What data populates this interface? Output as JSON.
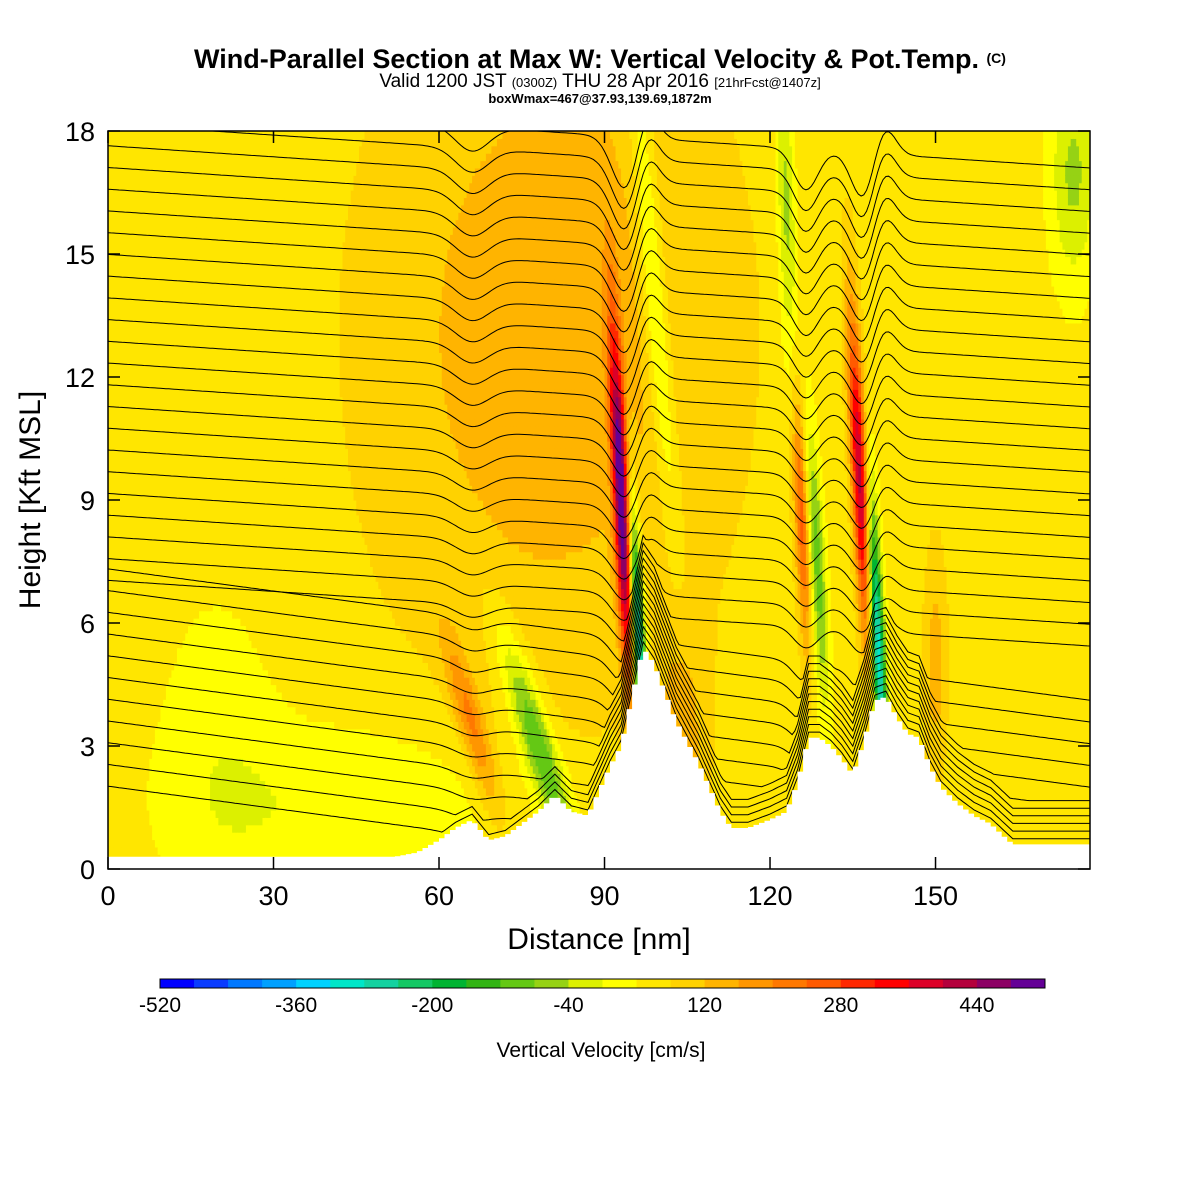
{
  "header": {
    "title_main": "Wind-Parallel Section at Max W: Vertical Velocity & Pot.Temp.",
    "title_mark": "(C)",
    "valid_prefix": "Valid 1200 JST",
    "valid_utc": "(0300Z)",
    "valid_date": "THU 28 Apr 2016",
    "forecast_info": "[21hrFcst@1407z]",
    "box_info": "boxWmax=467@37.93,139.69,1872m"
  },
  "chart_data": {
    "type": "heatmap",
    "title": "Wind-Parallel Section at Max W: Vertical Velocity & Pot.Temp.",
    "xlabel": "Distance [nm]",
    "ylabel": "Height [Kft MSL]",
    "xlim": [
      0,
      178
    ],
    "ylim": [
      0,
      18
    ],
    "x_ticks": [
      0,
      30,
      60,
      90,
      120,
      150
    ],
    "y_ticks": [
      0,
      3,
      6,
      9,
      12,
      15,
      18
    ],
    "colorbar": {
      "label": "Vertical Velocity [cm/s]",
      "min": -520,
      "max": 520,
      "step": 40,
      "tick_values": [
        -520,
        -360,
        -200,
        -40,
        120,
        280,
        440
      ],
      "colors": [
        "#0000ff",
        "#0a3cff",
        "#0078ff",
        "#00a0ff",
        "#00d2ff",
        "#00e6c8",
        "#14d2a0",
        "#14c864",
        "#00b432",
        "#32b414",
        "#64c814",
        "#96d214",
        "#dcf000",
        "#ffff00",
        "#ffe600",
        "#ffd200",
        "#ffb400",
        "#ff9600",
        "#ff7800",
        "#ff5a00",
        "#ff2800",
        "#ff0000",
        "#dc0028",
        "#b4003c",
        "#8c0064",
        "#640096"
      ]
    },
    "terrain": [
      [
        0,
        0.3
      ],
      [
        52,
        0.3
      ],
      [
        56,
        0.4
      ],
      [
        60,
        0.7
      ],
      [
        63,
        1.0
      ],
      [
        66,
        1.2
      ],
      [
        69,
        0.7
      ],
      [
        72,
        0.8
      ],
      [
        75,
        1.1
      ],
      [
        78,
        1.4
      ],
      [
        81,
        1.8
      ],
      [
        84,
        1.4
      ],
      [
        87,
        1.3
      ],
      [
        89,
        1.9
      ],
      [
        91,
        2.5
      ],
      [
        93,
        3.0
      ],
      [
        95,
        4.2
      ],
      [
        97,
        5.4
      ],
      [
        99,
        5.0
      ],
      [
        101,
        4.3
      ],
      [
        103,
        3.6
      ],
      [
        105,
        3.1
      ],
      [
        107,
        2.6
      ],
      [
        109,
        2.0
      ],
      [
        111,
        1.4
      ],
      [
        113,
        1.0
      ],
      [
        116,
        1.0
      ],
      [
        120,
        1.2
      ],
      [
        123,
        1.4
      ],
      [
        125,
        2.1
      ],
      [
        127,
        3.2
      ],
      [
        129,
        3.2
      ],
      [
        131,
        3.0
      ],
      [
        133,
        2.7
      ],
      [
        135,
        2.3
      ],
      [
        137,
        3.1
      ],
      [
        139,
        4.1
      ],
      [
        141,
        4.2
      ],
      [
        143,
        3.7
      ],
      [
        145,
        3.3
      ],
      [
        147,
        3.2
      ],
      [
        149,
        2.5
      ],
      [
        151,
        2.0
      ],
      [
        154,
        1.6
      ],
      [
        157,
        1.3
      ],
      [
        160,
        1.1
      ],
      [
        164,
        0.6
      ],
      [
        178,
        0.6
      ]
    ],
    "updraft_cores": [
      {
        "x": 93.5,
        "y": 8.5,
        "peak": 467
      },
      {
        "x": 136.5,
        "y": 9.5,
        "peak": 360
      },
      {
        "x": 126.0,
        "y": 8.5,
        "peak": 230
      },
      {
        "x": 66.0,
        "y": 3.5,
        "peak": 200
      }
    ],
    "downdraft_cores": [
      {
        "x": 96.0,
        "y": 5.5,
        "peak": -420
      },
      {
        "x": 139.5,
        "y": 5.0,
        "peak": -380
      },
      {
        "x": 80.0,
        "y": 3.0,
        "peak": -220
      }
    ],
    "theta_contours": {
      "count": 34,
      "color": "#000000"
    }
  }
}
